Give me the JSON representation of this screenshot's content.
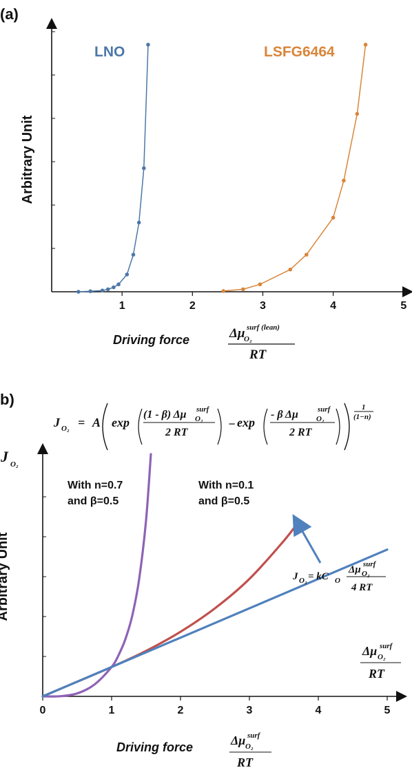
{
  "chart_data": [
    {
      "type": "line",
      "panel_label": "(a)",
      "ylabel": "Arbitrary Unit",
      "xlabel": "Driving force",
      "xlabel_formula": {
        "symbol": "Δμ",
        "sub": "O₂",
        "sup": "surf (lean)",
        "denominator": "RT"
      },
      "xlim": [
        0,
        5.1
      ],
      "ylim": [
        0,
        1.1
      ],
      "xticks": [
        1,
        2,
        3,
        4,
        5
      ],
      "tick_labels": [
        "1",
        "2",
        "3",
        "4",
        "5"
      ],
      "grid": false,
      "series": [
        {
          "name": "LNO",
          "color": "#4d77a8",
          "x": [
            0.38,
            0.55,
            0.72,
            0.8,
            0.88,
            0.95,
            1.07,
            1.16,
            1.24,
            1.31,
            1.37
          ],
          "y": [
            0.0,
            0.002,
            0.005,
            0.01,
            0.018,
            0.03,
            0.07,
            0.15,
            0.28,
            0.5,
            1.0
          ]
        },
        {
          "name": "LSFG6464",
          "color": "#d9853a",
          "x": [
            2.44,
            2.72,
            2.96,
            3.39,
            3.62,
            4.0,
            4.15,
            4.34,
            4.46
          ],
          "y": [
            0.003,
            0.01,
            0.03,
            0.09,
            0.15,
            0.3,
            0.45,
            0.72,
            1.0
          ]
        }
      ]
    },
    {
      "type": "line",
      "panel_label": "b)",
      "ylabel": "Arbitrary Unit",
      "xlabel": "Driving force",
      "xlabel_formula": {
        "symbol": "Δμ",
        "sub": "O₂",
        "sup": "surf",
        "denominator": "RT"
      },
      "ysymbol": {
        "main": "J",
        "sub": "O₂"
      },
      "xlim": [
        0,
        5.2
      ],
      "ylim": [
        0,
        1.65
      ],
      "xticks": [
        0,
        1,
        2,
        3,
        4,
        5
      ],
      "tick_labels": [
        "0",
        "1",
        "2",
        "3",
        "4",
        "5"
      ],
      "grid": false,
      "equation_top": {
        "lhs": "J",
        "lhs_sub": "O₂",
        "A": "A",
        "exp": "exp",
        "num1": "(1 - β) Δμ",
        "num2": "- β  Δμ",
        "sub": "O₂",
        "sup": "surf",
        "denominator": "2 RT",
        "minus": "−",
        "power_num": "1",
        "power_den": "(1−n)"
      },
      "equation_linear": {
        "lhs": "J",
        "lhs_sub": "O₂",
        "rhs": "= kC",
        "rhs_sub": "O",
        "num": "Δμ",
        "sub": "O₂",
        "sup": "surf",
        "denominator": "4 RT"
      },
      "axis_arrow_formula": {
        "symbol": "Δμ",
        "sub": "O₂",
        "sup": "surf",
        "denominator": "RT"
      },
      "annotations": [
        {
          "line1": "With n=0.7",
          "line2": "and β=0.5"
        },
        {
          "line1": "With n=0.1",
          "line2": "and β=0.5"
        }
      ],
      "series": [
        {
          "label": "With n=0.7 and β=0.5",
          "color": "#8e62b5",
          "x": [
            0.0,
            0.25,
            0.5,
            0.75,
            1.0,
            1.1,
            1.2,
            1.3,
            1.4,
            1.5,
            1.57
          ],
          "y": [
            0.0,
            0.001,
            0.02,
            0.08,
            0.2,
            0.28,
            0.39,
            0.55,
            0.8,
            1.2,
            1.65
          ]
        },
        {
          "label": "With n=0.1 and β=0.5",
          "color": "#c0504d",
          "x": [
            0.0,
            0.5,
            1.0,
            1.5,
            2.0,
            2.5,
            3.0,
            3.5,
            3.73
          ],
          "y": [
            0.0,
            0.1,
            0.2,
            0.31,
            0.44,
            0.6,
            0.8,
            1.06,
            1.2
          ]
        },
        {
          "label": "J_O2 = kC_O Δμ/(4RT)",
          "color": "#4f81bd",
          "x": [
            0,
            5
          ],
          "y": [
            0,
            1.0
          ]
        }
      ]
    }
  ]
}
